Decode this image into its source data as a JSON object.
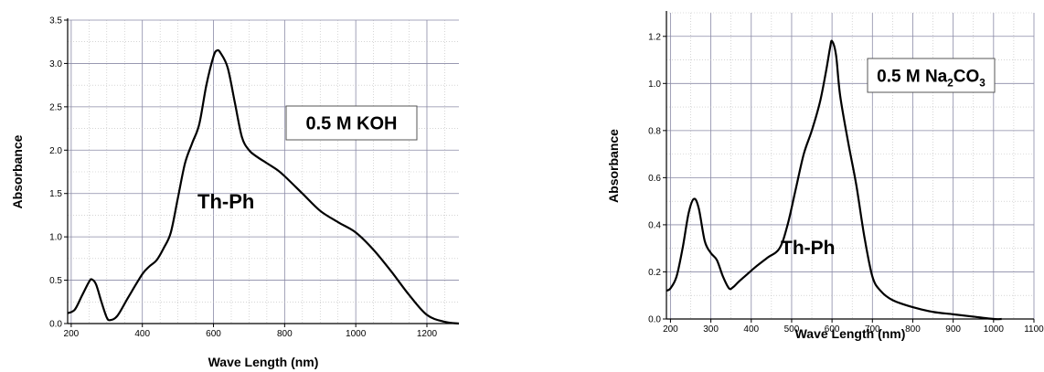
{
  "chart_data": [
    {
      "type": "line",
      "xlabel": "Wave Length (nm)",
      "ylabel": "Absorbance",
      "xlim": [
        190,
        1290
      ],
      "ylim": [
        0,
        3.5
      ],
      "xticks": [
        "200",
        "400",
        "600",
        "800",
        "1000",
        "1200"
      ],
      "yticks": [
        "0.0",
        "0.5",
        "1.0",
        "1.5",
        "2.0",
        "2.5",
        "3.0",
        "3.5"
      ],
      "grid": true,
      "legend_box": {
        "prefix": "0.5 M KOH",
        "sub": "",
        "suffix": ""
      },
      "annotation": "Th-Ph",
      "series": [
        {
          "x": [
            190,
            210,
            230,
            250,
            258,
            270,
            285,
            300,
            310,
            330,
            360,
            400,
            420,
            440,
            460,
            480,
            500,
            520,
            540,
            560,
            580,
            600,
            610,
            620,
            640,
            660,
            680,
            700,
            720,
            750,
            780,
            800,
            850,
            900,
            950,
            1000,
            1050,
            1100,
            1150,
            1200,
            1250,
            1290
          ],
          "y": [
            0.12,
            0.16,
            0.32,
            0.48,
            0.51,
            0.45,
            0.25,
            0.07,
            0.04,
            0.09,
            0.3,
            0.57,
            0.66,
            0.73,
            0.87,
            1.05,
            1.45,
            1.85,
            2.08,
            2.3,
            2.75,
            3.08,
            3.15,
            3.12,
            2.95,
            2.55,
            2.15,
            2.0,
            1.93,
            1.85,
            1.77,
            1.7,
            1.5,
            1.3,
            1.17,
            1.05,
            0.85,
            0.6,
            0.33,
            0.1,
            0.02,
            0.0
          ]
        }
      ]
    },
    {
      "type": "line",
      "xlabel": "Wave Length (nm)",
      "ylabel": "Absorbance",
      "xlim": [
        190,
        1100
      ],
      "ylim": [
        0,
        1.3
      ],
      "xticks": [
        "200",
        "300",
        "400",
        "500",
        "600",
        "700",
        "800",
        "900",
        "1000",
        "1100"
      ],
      "yticks": [
        "0.0",
        "0.2",
        "0.4",
        "0.6",
        "0.8",
        "1.0",
        "1.2"
      ],
      "grid": true,
      "legend_box": {
        "prefix": "0.5 M Na",
        "sub": "2",
        "suffix": "CO",
        "sub2": "3"
      },
      "annotation": "Th-Ph",
      "series": [
        {
          "x": [
            190,
            200,
            215,
            230,
            245,
            258,
            270,
            285,
            300,
            315,
            330,
            345,
            355,
            370,
            390,
            410,
            440,
            470,
            490,
            510,
            530,
            550,
            570,
            585,
            595,
            600,
            610,
            620,
            640,
            660,
            680,
            700,
            720,
            750,
            800,
            850,
            900,
            950,
            1000,
            1020
          ],
          "y": [
            0.12,
            0.13,
            0.18,
            0.3,
            0.45,
            0.51,
            0.47,
            0.33,
            0.28,
            0.25,
            0.18,
            0.13,
            0.135,
            0.16,
            0.19,
            0.22,
            0.26,
            0.3,
            0.4,
            0.55,
            0.7,
            0.8,
            0.92,
            1.05,
            1.15,
            1.18,
            1.12,
            0.95,
            0.75,
            0.57,
            0.35,
            0.18,
            0.12,
            0.08,
            0.05,
            0.03,
            0.02,
            0.01,
            0.0,
            0.0
          ]
        }
      ]
    }
  ]
}
